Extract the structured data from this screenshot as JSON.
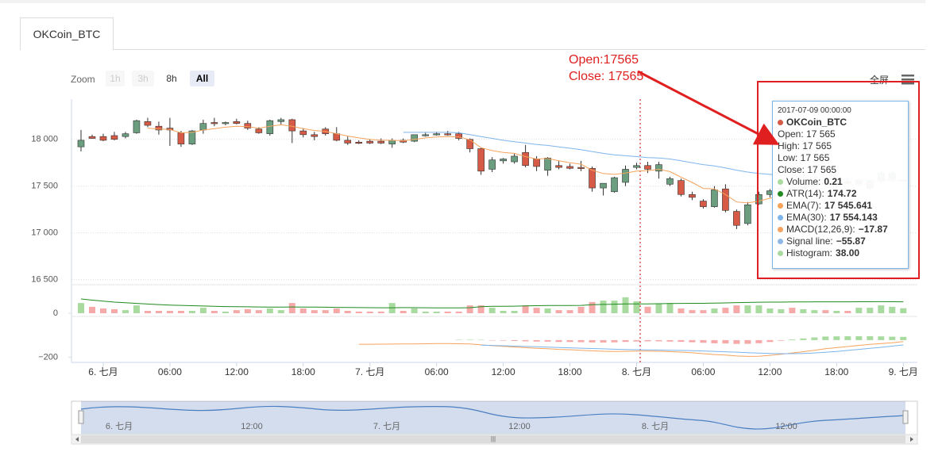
{
  "tab": "OKCoin_BTC",
  "toolbar": {
    "zoom": "Zoom",
    "buttons": [
      "1h",
      "3h",
      "8h",
      "All"
    ],
    "fullscreen": "全屏"
  },
  "chart_data": [
    {
      "type": "candlestick",
      "categories": [
        null,
        null,
        "6. 七月",
        null,
        null,
        null,
        null,
        null,
        "06:00",
        null,
        null,
        null,
        null,
        null,
        "12:00",
        null,
        null,
        null,
        null,
        null,
        "18:00",
        null,
        null,
        null,
        null,
        null,
        "7. 七月",
        null,
        null,
        null,
        null,
        null,
        "06:00",
        null,
        null,
        null,
        null,
        null,
        "12:00",
        null,
        null,
        null,
        null,
        null,
        "18:00",
        null,
        null,
        null,
        null,
        null,
        "8. 七月",
        null,
        null,
        null,
        null,
        null,
        "06:00",
        null,
        null,
        null,
        null,
        null,
        "12:00",
        null,
        null,
        null,
        null,
        null,
        "18:00",
        null,
        null,
        null,
        null,
        null,
        "9. 七月"
      ],
      "ylim": [
        16480,
        18430
      ],
      "yticks": [
        {
          "value": 16500,
          "label": "16 500"
        },
        {
          "value": 17000,
          "label": "17 000"
        },
        {
          "value": 17500,
          "label": "17 500"
        },
        {
          "value": 18000,
          "label": "18 000"
        }
      ],
      "grid": true,
      "series": [
        {
          "up_color": "#6a9e7f",
          "down_color": "#d65a45",
          "open": [
            17920,
            18030,
            18030,
            18040,
            18030,
            18070,
            18190,
            18140,
            18120,
            18070,
            17950,
            18100,
            18180,
            18170,
            18190,
            18170,
            18110,
            18060,
            18190,
            18210,
            18090,
            18050,
            18110,
            18060,
            17990,
            17970,
            17980,
            17980,
            17950,
            17990,
            17980,
            18050,
            18060,
            18060,
            18060,
            18000,
            17900,
            17680,
            17770,
            17760,
            17860,
            17790,
            17670,
            17720,
            17710,
            17700,
            17690,
            17480,
            17440,
            17540,
            17700,
            17720,
            17660,
            17520,
            17560,
            17410,
            17340,
            17280,
            17470,
            17230,
            17100,
            17310,
            17410,
            17450,
            17480,
            17470,
            17500,
            17540,
            17520,
            17550,
            17530,
            17480,
            17550,
            17570,
            17565
          ],
          "high": [
            18100,
            18050,
            18060,
            18080,
            18080,
            18210,
            18230,
            18190,
            18230,
            18090,
            18100,
            18210,
            18230,
            18190,
            18220,
            18200,
            18130,
            18210,
            18230,
            18220,
            18120,
            18080,
            18130,
            18130,
            18030,
            17990,
            18000,
            18010,
            18010,
            18010,
            18050,
            18070,
            18080,
            18090,
            18080,
            18010,
            17910,
            17810,
            17800,
            17850,
            17940,
            17820,
            17810,
            17770,
            17740,
            17770,
            17710,
            17530,
            17600,
            17720,
            17750,
            17760,
            17760,
            17600,
            17580,
            17440,
            17360,
            17500,
            17520,
            17250,
            17330,
            17440,
            17470,
            17510,
            17540,
            17520,
            17560,
            17580,
            17570,
            17600,
            17580,
            17560,
            17660,
            17660,
            17565
          ],
          "low": [
            17870,
            18010,
            17980,
            17990,
            18010,
            18060,
            18130,
            18050,
            17930,
            17920,
            17940,
            18060,
            18140,
            18150,
            18160,
            18100,
            18060,
            18040,
            18160,
            17960,
            18020,
            17990,
            18040,
            17980,
            17940,
            17950,
            17950,
            17950,
            17910,
            17960,
            17970,
            18030,
            18040,
            18040,
            17990,
            17860,
            17620,
            17650,
            17740,
            17740,
            17700,
            17660,
            17610,
            17680,
            17680,
            17660,
            17440,
            17400,
            17430,
            17500,
            17680,
            17640,
            17580,
            17500,
            17390,
            17350,
            17260,
            17270,
            17220,
            17040,
            17080,
            17300,
            17380,
            17420,
            17450,
            17430,
            17480,
            17500,
            17490,
            17520,
            17500,
            17460,
            17540,
            17540,
            17565
          ],
          "close": [
            17990,
            18010,
            17990,
            18000,
            18060,
            18200,
            18150,
            18100,
            18100,
            17950,
            18090,
            18170,
            18170,
            18180,
            18170,
            18120,
            18070,
            18200,
            18210,
            18090,
            18050,
            18030,
            18060,
            17990,
            17960,
            17960,
            17960,
            17960,
            17990,
            17970,
            18050,
            18050,
            18060,
            18050,
            18010,
            17900,
            17660,
            17780,
            17790,
            17820,
            17720,
            17710,
            17800,
            17700,
            17690,
            17690,
            17480,
            17530,
            17590,
            17680,
            17720,
            17680,
            17730,
            17580,
            17410,
            17380,
            17280,
            17460,
            17240,
            17080,
            17300,
            17410,
            17450,
            17480,
            17470,
            17500,
            17540,
            17520,
            17550,
            17530,
            17560,
            17550,
            17640,
            17640,
            17565
          ]
        },
        {
          "color": "#f7a35c",
          "values": [
            null,
            null,
            null,
            null,
            null,
            null,
            18120,
            18110,
            18105,
            18070,
            18075,
            18100,
            18115,
            18130,
            18140,
            18135,
            18120,
            18140,
            18155,
            18140,
            18115,
            18095,
            18085,
            18060,
            18035,
            18015,
            18000,
            17990,
            17990,
            17985,
            18000,
            18015,
            18025,
            18030,
            18025,
            17995,
            17910,
            17880,
            17860,
            17850,
            17815,
            17790,
            17795,
            17770,
            17750,
            17735,
            17670,
            17635,
            17625,
            17640,
            17660,
            17665,
            17680,
            17655,
            17595,
            17540,
            17475,
            17470,
            17410,
            17330,
            17320,
            17340,
            17370,
            17400,
            17420,
            17440,
            17470,
            17480,
            17500,
            17510,
            17520,
            17530,
            17560,
            17580,
            17545.641
          ]
        },
        {
          "color": "#7cb5ec",
          "values": [
            null,
            null,
            null,
            null,
            null,
            null,
            null,
            null,
            null,
            null,
            null,
            null,
            null,
            null,
            null,
            null,
            null,
            null,
            null,
            null,
            null,
            null,
            null,
            null,
            null,
            null,
            null,
            null,
            null,
            18075,
            18075,
            18075,
            18075,
            18075,
            18070,
            18050,
            18030,
            18010,
            17990,
            17975,
            17960,
            17945,
            17935,
            17920,
            17905,
            17890,
            17870,
            17850,
            17835,
            17825,
            17815,
            17805,
            17800,
            17790,
            17770,
            17750,
            17730,
            17715,
            17695,
            17670,
            17650,
            17635,
            17625,
            17615,
            17605,
            17595,
            17590,
            17580,
            17575,
            17570,
            17565,
            17560,
            17560,
            17558,
            17554.143
          ]
        }
      ]
    },
    {
      "type": "volume",
      "ylim": [
        0,
        1.1
      ],
      "yticks": [
        0
      ],
      "y2lim": [
        0,
        400
      ],
      "series": [
        {
          "up_color": "#a9dba0",
          "down_color": "#f5a9a9",
          "values": [
            0.43,
            0.27,
            0.2,
            0.17,
            0.13,
            0.33,
            0.1,
            0.1,
            0.1,
            0.1,
            0.1,
            0.23,
            0.1,
            0.07,
            0.13,
            0.17,
            0.13,
            0.2,
            0.13,
            0.43,
            0.2,
            0.13,
            0.13,
            0.2,
            0.1,
            0.07,
            0.07,
            0.07,
            0.43,
            0.1,
            0.2,
            0.07,
            0.07,
            0.07,
            0.07,
            0.33,
            0.33,
            0.23,
            0.1,
            0.1,
            0.33,
            0.23,
            0.2,
            0.13,
            0.13,
            0.27,
            0.47,
            0.53,
            0.53,
            0.67,
            0.5,
            0.27,
            0.4,
            0.43,
            0.2,
            0.13,
            0.13,
            0.2,
            0.23,
            0.33,
            0.33,
            0.33,
            0.2,
            0.17,
            0.23,
            0.17,
            0.13,
            0.13,
            0.1,
            0.1,
            0.23,
            0.23,
            0.33,
            0.27,
            0.21
          ]
        },
        {
          "color": "#1f8a1f",
          "axis": "y2",
          "values": [
            218,
            200,
            185,
            170,
            160,
            150,
            140,
            132,
            125,
            120,
            115,
            110,
            105,
            102,
            100,
            98,
            96,
            95,
            95,
            96,
            95,
            93,
            92,
            90,
            88,
            86,
            85,
            84,
            84,
            86,
            85,
            84,
            83,
            82,
            82,
            85,
            100,
            105,
            105,
            108,
            112,
            115,
            118,
            118,
            118,
            120,
            130,
            135,
            138,
            142,
            142,
            142,
            145,
            148,
            150,
            152,
            152,
            155,
            158,
            162,
            165,
            168,
            170,
            170,
            172,
            172,
            174,
            174,
            175,
            175,
            176,
            176,
            177,
            176,
            174.72
          ]
        }
      ]
    },
    {
      "type": "macd",
      "ylim": [
        -260,
        240
      ],
      "yticks": [
        {
          "value": -200,
          "label": "−200"
        }
      ],
      "series": [
        {
          "color": "#f7a35c",
          "values": [
            null,
            null,
            null,
            null,
            null,
            null,
            null,
            null,
            null,
            null,
            null,
            null,
            null,
            null,
            null,
            null,
            null,
            null,
            null,
            null,
            null,
            null,
            null,
            null,
            null,
            -48,
            -48,
            -47,
            -46,
            -45,
            -44,
            -42,
            -40,
            -40,
            -42,
            -45,
            -55,
            -65,
            -72,
            -80,
            -88,
            -95,
            -100,
            -108,
            -112,
            -118,
            -125,
            -130,
            -132,
            -130,
            -128,
            -128,
            -130,
            -135,
            -140,
            -148,
            -158,
            -168,
            -175,
            -185,
            -190,
            -188,
            -178,
            -165,
            -150,
            -135,
            -118,
            -100,
            -88,
            -75,
            -62,
            -50,
            -40,
            -30,
            -17.87
          ]
        },
        {
          "color": "#7cb5ec",
          "values": [
            null,
            null,
            null,
            null,
            null,
            null,
            null,
            null,
            null,
            null,
            null,
            null,
            null,
            null,
            null,
            null,
            null,
            null,
            null,
            null,
            null,
            null,
            null,
            null,
            null,
            null,
            null,
            null,
            null,
            null,
            null,
            null,
            null,
            null,
            null,
            null,
            -58,
            -62,
            -66,
            -70,
            -74,
            -78,
            -82,
            -86,
            -90,
            -94,
            -98,
            -102,
            -106,
            -109,
            -112,
            -114,
            -116,
            -118,
            -120,
            -123,
            -127,
            -131,
            -136,
            -141,
            -147,
            -152,
            -156,
            -158,
            -158,
            -155,
            -150,
            -142,
            -132,
            -120,
            -108,
            -96,
            -84,
            -70,
            -55.87
          ]
        },
        {
          "type": "bar",
          "up_color": "#a9dba0",
          "down_color": "#f5a9a9",
          "values": [
            null,
            null,
            null,
            null,
            null,
            null,
            null,
            null,
            null,
            null,
            null,
            null,
            null,
            null,
            null,
            null,
            null,
            null,
            null,
            null,
            null,
            null,
            null,
            null,
            null,
            null,
            null,
            null,
            null,
            null,
            null,
            null,
            null,
            null,
            5,
            5,
            3,
            -3,
            -6,
            -10,
            -14,
            -17,
            -18,
            -22,
            -22,
            -24,
            -27,
            -28,
            -26,
            -21,
            -16,
            -14,
            -14,
            -17,
            -20,
            -25,
            -31,
            -37,
            -39,
            -44,
            -43,
            -36,
            -22,
            -7,
            8,
            20,
            32,
            42,
            44,
            45,
            46,
            46,
            44,
            40,
            38
          ]
        }
      ]
    }
  ],
  "navigator": {
    "labels": [
      "6. 七月",
      "12:00",
      "7. 七月",
      "12:00",
      "8. 七月",
      "12:00"
    ]
  },
  "tooltip": {
    "date": "2017-07-09 00:00:00",
    "series": "OKCoin_BTC",
    "series_color": "#d65a45",
    "lines": [
      "Open: 17 565",
      "High: 17 565",
      "Low: 17 565",
      "Close: 17 565"
    ],
    "rows": [
      {
        "label": "Volume:",
        "value": "0.21",
        "color": "#a9dba0"
      },
      {
        "label": "ATR(14):",
        "value": "174.72",
        "color": "#1f8a1f"
      },
      {
        "label": "EMA(7):",
        "value": "17 545.641",
        "color": "#f7a35c"
      },
      {
        "label": "EMA(30):",
        "value": "17 554.143",
        "color": "#7cb5ec"
      },
      {
        "label": "MACD(12,26,9):",
        "value": "−17.87",
        "color": "#f4a460"
      },
      {
        "label": "Signal line:",
        "value": "−55.87",
        "color": "#8fb8e6"
      },
      {
        "label": "Histogram:",
        "value": "38.00",
        "color": "#a9dba0"
      }
    ]
  },
  "annotation": {
    "lines": [
      "Open:17565",
      "Close: 17565"
    ]
  }
}
